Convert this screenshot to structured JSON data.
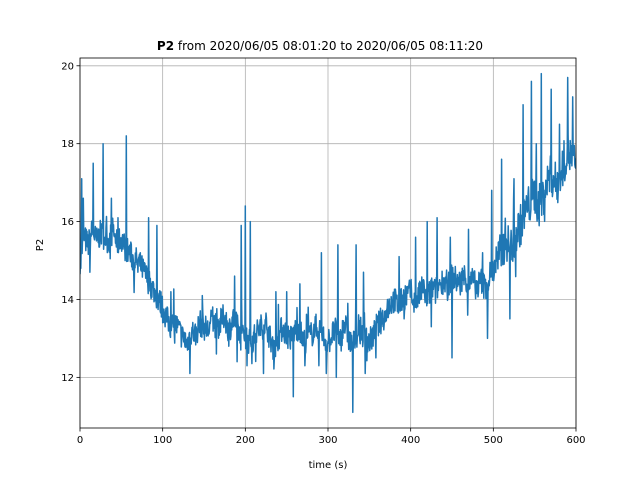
{
  "chart_data": {
    "type": "line",
    "title_bold": "P2",
    "title_rest": " from 2020/06/05 08:01:20 to 2020/06/05 08:11:20",
    "xlabel": "time (s)",
    "ylabel": "P2",
    "xlim": [
      0,
      600
    ],
    "ylim": [
      10.7,
      20.2
    ],
    "xticks": [
      0,
      100,
      200,
      300,
      400,
      500,
      600
    ],
    "yticks": [
      12,
      14,
      16,
      18,
      20
    ],
    "grid": true,
    "legend": "none",
    "series": [
      {
        "color": "#1f77b4",
        "x": [
          0,
          5,
          10,
          15,
          20,
          25,
          30,
          35,
          40,
          45,
          50,
          55,
          60,
          65,
          70,
          75,
          80,
          85,
          90,
          95,
          100,
          105,
          110,
          115,
          120,
          125,
          130,
          135,
          140,
          145,
          150,
          155,
          160,
          165,
          170,
          175,
          180,
          185,
          190,
          195,
          200,
          205,
          210,
          215,
          220,
          225,
          230,
          235,
          240,
          245,
          250,
          255,
          260,
          265,
          270,
          275,
          280,
          285,
          290,
          295,
          300,
          305,
          310,
          315,
          320,
          325,
          330,
          335,
          340,
          345,
          350,
          355,
          360,
          365,
          370,
          375,
          380,
          385,
          390,
          395,
          400,
          405,
          410,
          415,
          420,
          425,
          430,
          435,
          440,
          445,
          450,
          455,
          460,
          465,
          470,
          475,
          480,
          485,
          490,
          495,
          500,
          505,
          510,
          515,
          520,
          525,
          530,
          535,
          540,
          545,
          550,
          555,
          560,
          565,
          570,
          575,
          580,
          585,
          590,
          595,
          600
        ],
        "y": [
          15.0,
          15.6,
          15.4,
          15.8,
          15.5,
          15.7,
          15.6,
          15.5,
          15.8,
          15.4,
          15.6,
          15.3,
          15.2,
          15.0,
          15.0,
          14.8,
          14.6,
          14.4,
          14.2,
          14.0,
          13.8,
          13.5,
          13.3,
          13.4,
          13.2,
          13.0,
          12.9,
          13.2,
          13.1,
          13.4,
          13.3,
          13.2,
          13.5,
          13.3,
          13.4,
          13.6,
          13.2,
          13.5,
          13.3,
          13.0,
          13.1,
          12.9,
          13.0,
          13.2,
          13.3,
          13.4,
          13.0,
          12.8,
          13.0,
          13.3,
          13.1,
          13.0,
          13.2,
          13.3,
          12.9,
          13.0,
          13.1,
          13.3,
          13.2,
          13.0,
          12.9,
          13.1,
          13.2,
          13.0,
          13.4,
          13.0,
          12.8,
          13.1,
          13.2,
          13.0,
          12.9,
          13.1,
          13.3,
          13.5,
          13.6,
          13.9,
          14.0,
          13.8,
          14.0,
          14.1,
          14.2,
          13.9,
          14.1,
          14.3,
          14.0,
          14.3,
          14.2,
          14.4,
          14.5,
          14.3,
          14.6,
          14.5,
          14.4,
          14.6,
          14.4,
          14.5,
          14.3,
          14.5,
          14.3,
          14.6,
          14.8,
          15.0,
          15.2,
          15.6,
          15.3,
          15.5,
          15.8,
          16.0,
          16.3,
          16.5,
          16.7,
          16.4,
          16.6,
          17.0,
          17.2,
          17.0,
          17.1,
          17.5,
          17.8,
          17.6,
          17.4
        ],
        "spikes": [
          [
            2,
            17.1
          ],
          [
            4,
            16.6
          ],
          [
            16,
            17.5
          ],
          [
            28,
            18.0
          ],
          [
            38,
            16.6
          ],
          [
            46,
            16.1
          ],
          [
            56,
            18.2
          ],
          [
            83,
            16.1
          ],
          [
            93,
            15.9
          ],
          [
            110,
            14.2
          ],
          [
            148,
            14.1
          ],
          [
            165,
            14.0
          ],
          [
            187,
            14.6
          ],
          [
            195,
            15.9
          ],
          [
            200,
            16.4
          ],
          [
            206,
            16.0
          ],
          [
            237,
            14.2
          ],
          [
            250,
            14.2
          ],
          [
            266,
            14.4
          ],
          [
            276,
            13.8
          ],
          [
            292,
            15.2
          ],
          [
            298,
            14.0
          ],
          [
            312,
            15.4
          ],
          [
            324,
            13.9
          ],
          [
            334,
            15.4
          ],
          [
            343,
            14.7
          ],
          [
            372,
            14.0
          ],
          [
            386,
            15.1
          ],
          [
            406,
            15.6
          ],
          [
            420,
            16.0
          ],
          [
            432,
            16.1
          ],
          [
            448,
            15.6
          ],
          [
            470,
            15.8
          ],
          [
            487,
            15.2
          ],
          [
            498,
            16.8
          ],
          [
            510,
            17.6
          ],
          [
            525,
            17.1
          ],
          [
            536,
            19.0
          ],
          [
            546,
            19.6
          ],
          [
            552,
            18.0
          ],
          [
            558,
            19.8
          ],
          [
            570,
            19.4
          ],
          [
            580,
            18.5
          ],
          [
            590,
            19.7
          ],
          [
            596,
            19.2
          ]
        ],
        "dips": [
          [
            1,
            14.8
          ],
          [
            12,
            14.7
          ],
          [
            70,
            14.7
          ],
          [
            100,
            13.4
          ],
          [
            130,
            12.7
          ],
          [
            133,
            12.1
          ],
          [
            165,
            12.6
          ],
          [
            180,
            12.8
          ],
          [
            190,
            12.4
          ],
          [
            202,
            12.3
          ],
          [
            222,
            12.1
          ],
          [
            258,
            11.5
          ],
          [
            272,
            12.3
          ],
          [
            289,
            12.3
          ],
          [
            298,
            12.1
          ],
          [
            310,
            12.0
          ],
          [
            330,
            11.1
          ],
          [
            345,
            12.1
          ],
          [
            358,
            12.5
          ],
          [
            392,
            13.5
          ],
          [
            425,
            13.3
          ],
          [
            450,
            12.5
          ],
          [
            469,
            13.6
          ],
          [
            493,
            13.0
          ],
          [
            520,
            13.5
          ]
        ]
      }
    ]
  }
}
